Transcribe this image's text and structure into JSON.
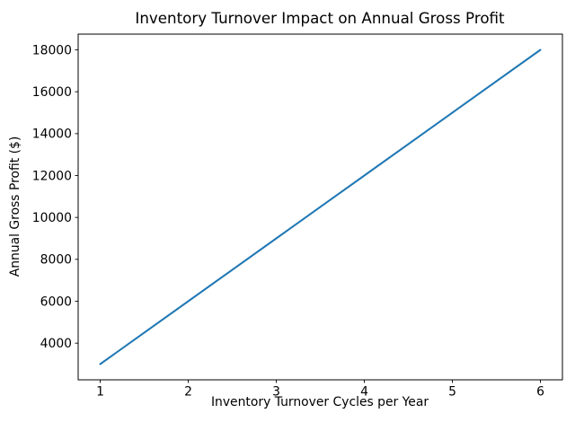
{
  "chart_data": {
    "type": "line",
    "title": "Inventory Turnover Impact on Annual Gross Profit",
    "xlabel": "Inventory Turnover Cycles per Year",
    "ylabel": "Annual Gross Profit ($)",
    "x": [
      1,
      2,
      3,
      4,
      5,
      6
    ],
    "y": [
      3000,
      6000,
      9000,
      12000,
      15000,
      18000
    ],
    "xticks": [
      1,
      2,
      3,
      4,
      5,
      6
    ],
    "yticks": [
      4000,
      6000,
      8000,
      10000,
      12000,
      14000,
      16000,
      18000
    ],
    "xlim": [
      0.75,
      6.25
    ],
    "ylim": [
      2250,
      18750
    ],
    "grid": false,
    "legend": "none",
    "line_color": "#1f77b4",
    "spine_color": "#000000"
  }
}
